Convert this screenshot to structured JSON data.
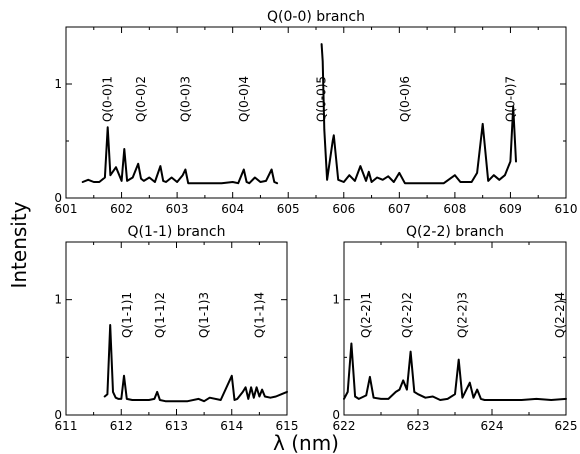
{
  "chart_data": {
    "type": "line",
    "ylabel": "Intensity",
    "xlabel": "λ (nm)",
    "panels": [
      {
        "id": "q00",
        "title": "Q(0-0) branch",
        "xlim": [
          601,
          610
        ],
        "ylim": [
          0,
          1.5
        ],
        "xticks": [
          601,
          602,
          603,
          604,
          605,
          606,
          607,
          608,
          609,
          610
        ],
        "yticks": [
          0,
          1
        ],
        "annotations": [
          {
            "text": "Q(0-0)1",
            "x": 601.75
          },
          {
            "text": "Q(0-0)2",
            "x": 602.35
          },
          {
            "text": "Q(0-0)3",
            "x": 603.15
          },
          {
            "text": "Q(0-0)4",
            "x": 604.2
          },
          {
            "text": "Q(0-0)5",
            "x": 605.6
          },
          {
            "text": "Q(0-0)6",
            "x": 607.1
          },
          {
            "text": "Q(0-0)7",
            "x": 609.0
          }
        ],
        "series": [
          {
            "x": [
              601.3,
              601.4,
              601.5,
              601.6,
              601.7,
              601.75,
              601.8,
              601.9,
              602.0,
              602.05,
              602.1,
              602.2,
              602.3,
              602.35,
              602.4,
              602.5,
              602.6,
              602.7,
              602.75,
              602.8,
              602.9,
              603.0,
              603.1,
              603.15,
              603.2,
              603.4,
              603.6,
              603.8,
              604.0,
              604.1,
              604.2,
              604.25,
              604.3,
              604.4,
              604.5,
              604.6,
              604.7,
              604.75,
              604.8
            ],
            "y": [
              0.14,
              0.16,
              0.14,
              0.14,
              0.18,
              0.62,
              0.2,
              0.27,
              0.15,
              0.43,
              0.15,
              0.18,
              0.3,
              0.17,
              0.15,
              0.18,
              0.14,
              0.28,
              0.15,
              0.14,
              0.18,
              0.14,
              0.2,
              0.25,
              0.13,
              0.13,
              0.13,
              0.13,
              0.14,
              0.13,
              0.25,
              0.14,
              0.13,
              0.18,
              0.14,
              0.15,
              0.25,
              0.14,
              0.13
            ]
          },
          {
            "x": [
              605.6,
              605.62,
              605.65,
              605.7,
              605.8,
              605.82,
              605.9,
              606.0,
              606.1,
              606.2,
              606.3,
              606.4,
              606.45,
              606.5,
              606.6,
              606.7,
              606.8,
              606.9,
              607.0,
              607.1,
              607.2,
              607.4,
              607.6,
              607.8,
              608.0,
              608.1,
              608.3,
              608.4,
              608.5,
              608.6,
              608.7,
              608.8,
              608.9,
              609.0,
              609.05,
              609.1
            ],
            "y": [
              1.35,
              1.2,
              0.6,
              0.16,
              0.5,
              0.55,
              0.16,
              0.14,
              0.2,
              0.15,
              0.28,
              0.15,
              0.23,
              0.14,
              0.18,
              0.16,
              0.19,
              0.14,
              0.22,
              0.13,
              0.13,
              0.13,
              0.13,
              0.13,
              0.2,
              0.14,
              0.14,
              0.22,
              0.65,
              0.15,
              0.2,
              0.16,
              0.2,
              0.32,
              0.8,
              0.32
            ]
          }
        ]
      },
      {
        "id": "q11",
        "title": "Q(1-1) branch",
        "xlim": [
          611,
          615
        ],
        "ylim": [
          0,
          1.5
        ],
        "xticks": [
          611,
          612,
          613,
          614,
          615
        ],
        "yticks": [
          0,
          1
        ],
        "annotations": [
          {
            "text": "Q(1-1)1",
            "x": 612.1
          },
          {
            "text": "Q(1-1)2",
            "x": 612.7
          },
          {
            "text": "Q(1-1)3",
            "x": 613.5
          },
          {
            "text": "Q(1-1)4",
            "x": 614.5
          }
        ],
        "series": [
          {
            "x": [
              611.7,
              611.75,
              611.8,
              611.85,
              611.9,
              611.95,
              612.0,
              612.05,
              612.1,
              612.2,
              612.3,
              612.4,
              612.5,
              612.6,
              612.65,
              612.7,
              612.8,
              613.0,
              613.2,
              613.4,
              613.5,
              613.6,
              613.8,
              614.0,
              614.05,
              614.1,
              614.2,
              614.25,
              614.3,
              614.35,
              614.4,
              614.45,
              614.5,
              614.55,
              614.6,
              614.7,
              614.8,
              614.9,
              615.0
            ],
            "y": [
              0.16,
              0.18,
              0.78,
              0.2,
              0.15,
              0.14,
              0.14,
              0.34,
              0.14,
              0.13,
              0.13,
              0.13,
              0.13,
              0.14,
              0.2,
              0.13,
              0.12,
              0.12,
              0.12,
              0.14,
              0.12,
              0.15,
              0.13,
              0.34,
              0.13,
              0.14,
              0.2,
              0.24,
              0.14,
              0.24,
              0.15,
              0.24,
              0.16,
              0.22,
              0.16,
              0.15,
              0.16,
              0.18,
              0.2
            ]
          }
        ]
      },
      {
        "id": "q22",
        "title": "Q(2-2) branch",
        "xlim": [
          622,
          625
        ],
        "ylim": [
          0,
          1.5
        ],
        "xticks": [
          622,
          623,
          624,
          625
        ],
        "yticks": [
          0,
          1
        ],
        "annotations": [
          {
            "text": "Q(2-2)1",
            "x": 622.3
          },
          {
            "text": "Q(2-2)2",
            "x": 622.85
          },
          {
            "text": "Q(2-2)3",
            "x": 623.6
          },
          {
            "text": "Q(2-2)4",
            "x": 624.92
          }
        ],
        "series": [
          {
            "x": [
              622.0,
              622.05,
              622.1,
              622.15,
              622.2,
              622.3,
              622.35,
              622.4,
              622.5,
              622.6,
              622.7,
              622.75,
              622.8,
              622.85,
              622.9,
              622.95,
              623.0,
              623.1,
              623.2,
              623.3,
              623.4,
              623.5,
              623.55,
              623.6,
              623.7,
              623.75,
              623.8,
              623.85,
              623.9,
              624.0,
              624.2,
              624.4,
              624.6,
              624.8,
              625.0
            ],
            "y": [
              0.14,
              0.2,
              0.62,
              0.16,
              0.14,
              0.17,
              0.33,
              0.15,
              0.14,
              0.14,
              0.2,
              0.22,
              0.3,
              0.22,
              0.55,
              0.2,
              0.18,
              0.15,
              0.16,
              0.13,
              0.14,
              0.18,
              0.48,
              0.15,
              0.28,
              0.15,
              0.22,
              0.14,
              0.13,
              0.13,
              0.13,
              0.13,
              0.14,
              0.13,
              0.14
            ]
          }
        ]
      }
    ]
  }
}
